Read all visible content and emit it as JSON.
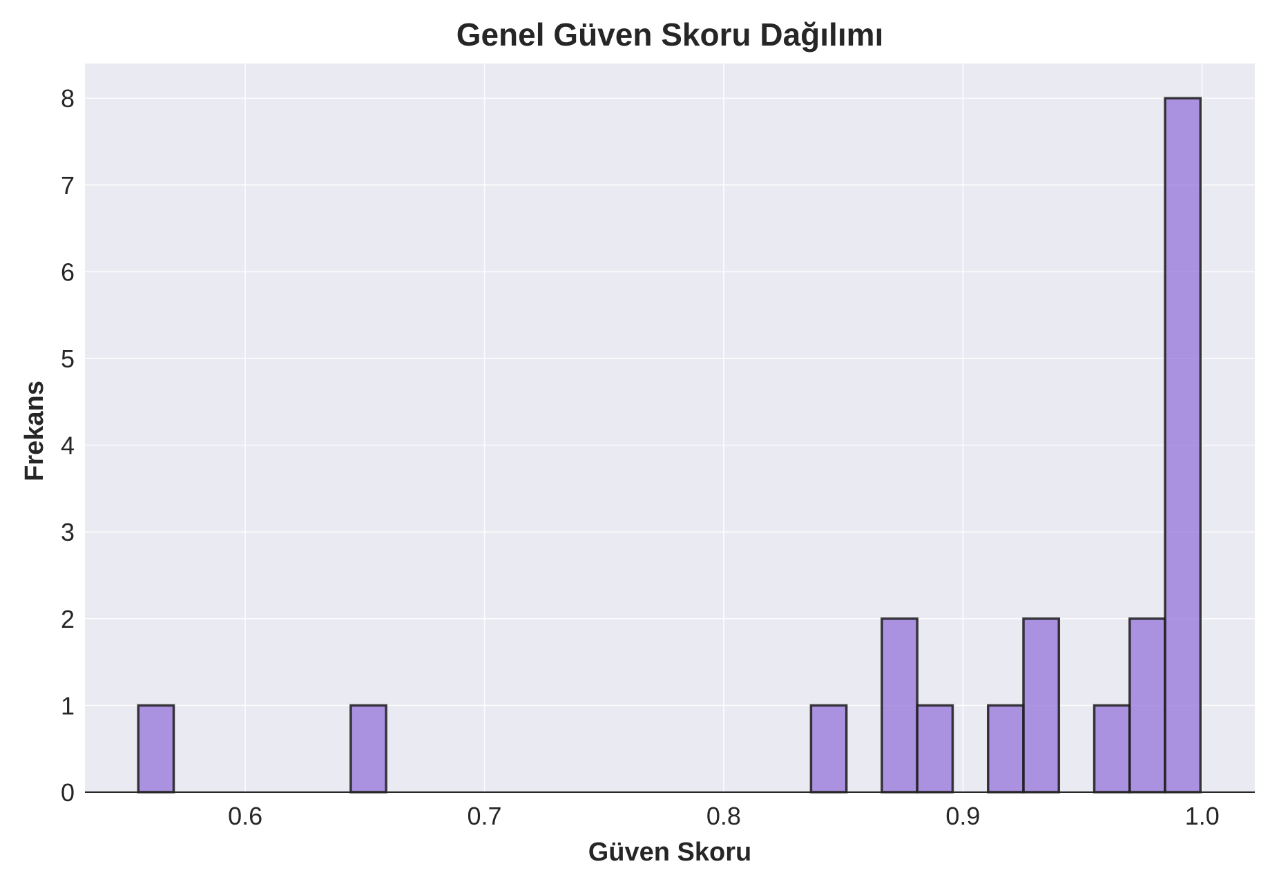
{
  "chart_data": {
    "type": "bar",
    "title": "Genel Güven Skoru Dağılımı",
    "xlabel": "Güven Skoru",
    "ylabel": "Frekans",
    "xlim": [
      0.533,
      1.022
    ],
    "ylim": [
      0,
      8.4
    ],
    "xticks": [
      0.6,
      0.7,
      0.8,
      0.9,
      1.0
    ],
    "xtick_labels": [
      "0.6",
      "0.7",
      "0.8",
      "0.9",
      "1.0"
    ],
    "yticks": [
      0,
      1,
      2,
      3,
      4,
      5,
      6,
      7,
      8
    ],
    "ytick_labels": [
      "0",
      "1",
      "2",
      "3",
      "4",
      "5",
      "6",
      "7",
      "8"
    ],
    "grid": true,
    "bin_width": 0.0148,
    "bins": [
      {
        "start": 0.5553,
        "count": 1
      },
      {
        "start": 0.6441,
        "count": 1
      },
      {
        "start": 0.8365,
        "count": 1
      },
      {
        "start": 0.8661,
        "count": 2
      },
      {
        "start": 0.8809,
        "count": 1
      },
      {
        "start": 0.9105,
        "count": 1
      },
      {
        "start": 0.9253,
        "count": 2
      },
      {
        "start": 0.9549,
        "count": 1
      },
      {
        "start": 0.9697,
        "count": 2
      },
      {
        "start": 0.9845,
        "count": 8
      }
    ],
    "colors": {
      "bar_fill": "#9e7fdc",
      "bar_edge": "#1a1a1a",
      "plot_background": "#eaeaf2",
      "grid": "#ffffff"
    }
  }
}
